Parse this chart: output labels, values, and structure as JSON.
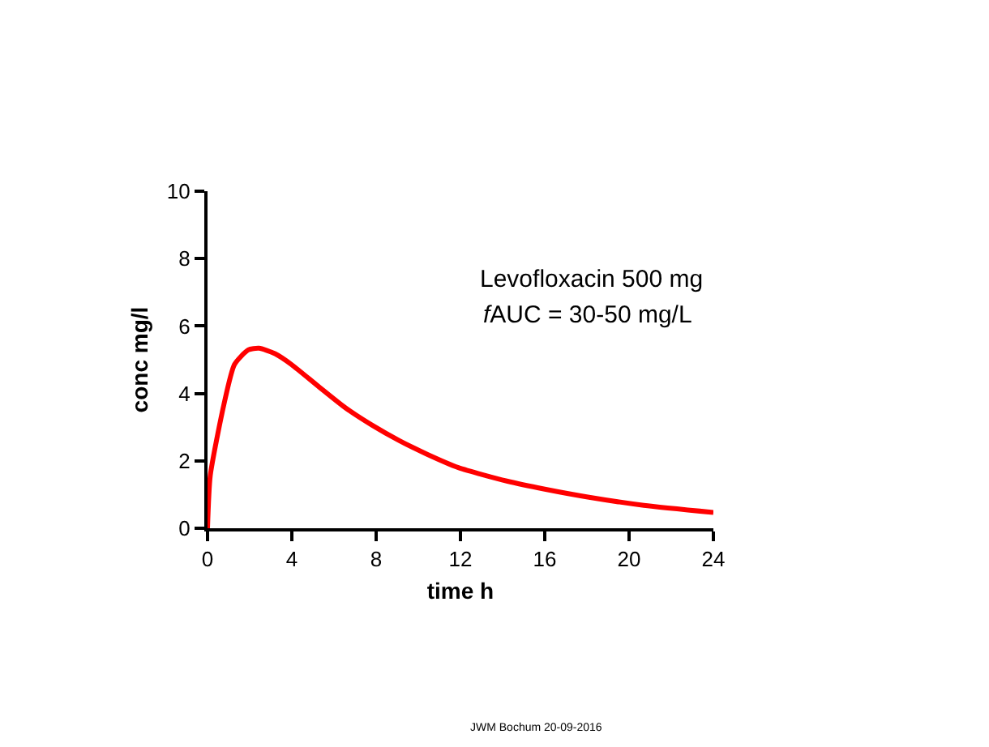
{
  "chart_data": {
    "type": "line",
    "xlabel": "time h",
    "ylabel": "conc mg/l",
    "x": [
      0,
      0.13,
      0.77,
      1.28,
      1.93,
      2.44,
      3.2,
      3.98,
      5.26,
      6.55,
      7.83,
      9.1,
      10.4,
      11.9,
      14.2,
      16.0,
      18.1,
      20.7,
      24
    ],
    "series": [
      {
        "color": "#ff0000",
        "values": [
          0,
          1.56,
          3.65,
          4.86,
          5.29,
          5.34,
          5.18,
          4.86,
          4.21,
          3.57,
          3.05,
          2.6,
          2.2,
          1.8,
          1.4,
          1.16,
          0.92,
          0.68,
          0.47
        ]
      }
    ],
    "xlim": [
      0,
      24
    ],
    "xticks": [
      0,
      4,
      8,
      12,
      16,
      20,
      24
    ],
    "ylim": [
      0,
      10
    ],
    "yticks": [
      0,
      2,
      4,
      6,
      8,
      10
    ],
    "legend": false,
    "marker": "none",
    "line_style": "solid",
    "annotations": [
      "Levofloxacin 500 mg",
      "fAUC = 30-50 mg/L",
      "JWM Bochum 20-09-2016"
    ]
  }
}
